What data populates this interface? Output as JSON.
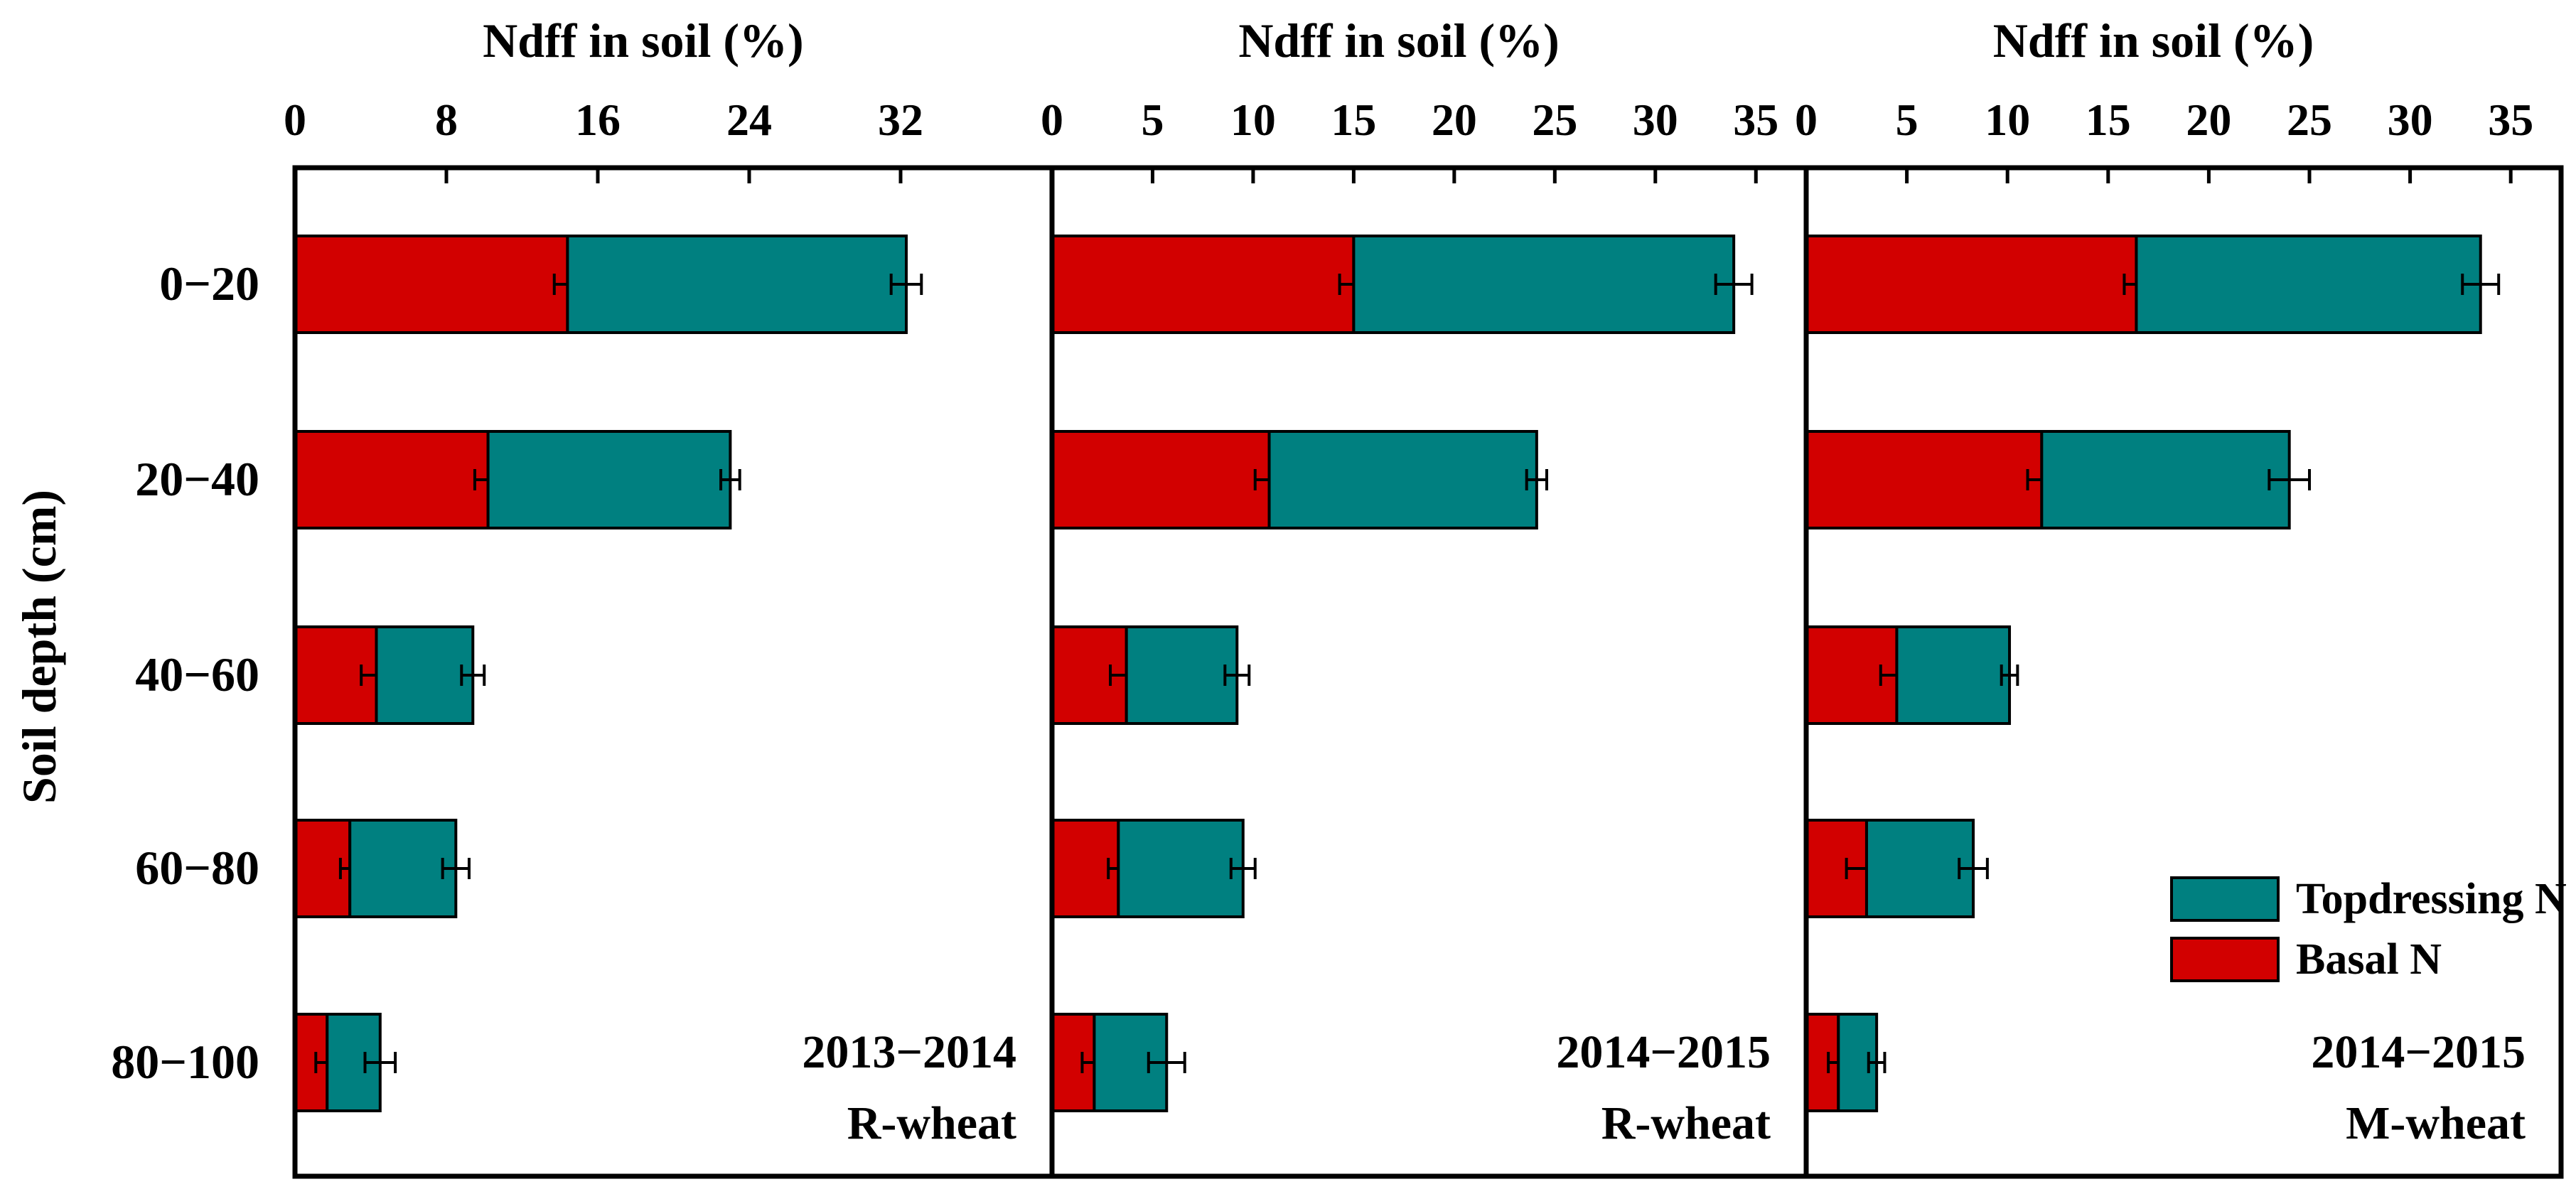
{
  "chart_data": {
    "type": "bar",
    "orientation": "horizontal",
    "stacked": true,
    "ylabel": "Soil depth (cm)",
    "categories": [
      "0−20",
      "20−40",
      "40−60",
      "60−80",
      "80−100"
    ],
    "legend": {
      "placement": "bottom-right",
      "entries": [
        {
          "name": "Topdressing N",
          "color": "#008080"
        },
        {
          "name": "Basal N",
          "color": "#d20000"
        }
      ]
    },
    "colors": {
      "basal": "#d20000",
      "topdressing": "#008080",
      "axis": "#000000"
    },
    "panels": [
      {
        "xlabel": "Ndff in soil (%)",
        "xlim": [
          0,
          40
        ],
        "xticks": [
          0,
          8,
          16,
          24,
          32
        ],
        "season": "2013−2014",
        "cultivar": "R-wheat",
        "series": [
          {
            "name": "Basal N",
            "values": [
              14.4,
              10.2,
              4.3,
              2.9,
              1.7
            ],
            "errors": [
              0.7,
              0.7,
              0.8,
              0.5,
              0.6
            ]
          },
          {
            "name": "Topdressing N",
            "values": [
              17.9,
              12.8,
              5.1,
              5.6,
              2.8
            ],
            "errors": [
              0.8,
              0.5,
              0.6,
              0.7,
              0.8
            ]
          }
        ]
      },
      {
        "xlabel": "Ndff in soil (%)",
        "xlim": [
          0,
          37.5
        ],
        "xticks": [
          0,
          5,
          10,
          15,
          20,
          25,
          30,
          35
        ],
        "season": "2014−2015",
        "cultivar": "R-wheat",
        "series": [
          {
            "name": "Basal N",
            "values": [
              15.0,
              10.8,
              3.7,
              3.3,
              2.1
            ],
            "errors": [
              0.7,
              0.7,
              0.8,
              0.5,
              0.6
            ]
          },
          {
            "name": "Topdressing N",
            "values": [
              18.9,
              13.3,
              5.5,
              6.2,
              3.6
            ],
            "errors": [
              0.9,
              0.5,
              0.6,
              0.6,
              0.9
            ]
          }
        ]
      },
      {
        "xlabel": "Ndff in soil (%)",
        "xlim": [
          0,
          37.5
        ],
        "xticks": [
          0,
          5,
          10,
          15,
          20,
          25,
          30,
          35
        ],
        "season": "2014−2015",
        "cultivar": "M-wheat",
        "series": [
          {
            "name": "Basal N",
            "values": [
              16.4,
              11.7,
              4.5,
              3.0,
              1.6
            ],
            "errors": [
              0.6,
              0.7,
              0.8,
              1.0,
              0.5
            ]
          },
          {
            "name": "Topdressing N",
            "values": [
              17.1,
              12.3,
              5.6,
              5.3,
              1.9
            ],
            "errors": [
              0.9,
              1.0,
              0.4,
              0.7,
              0.4
            ]
          }
        ]
      }
    ]
  }
}
